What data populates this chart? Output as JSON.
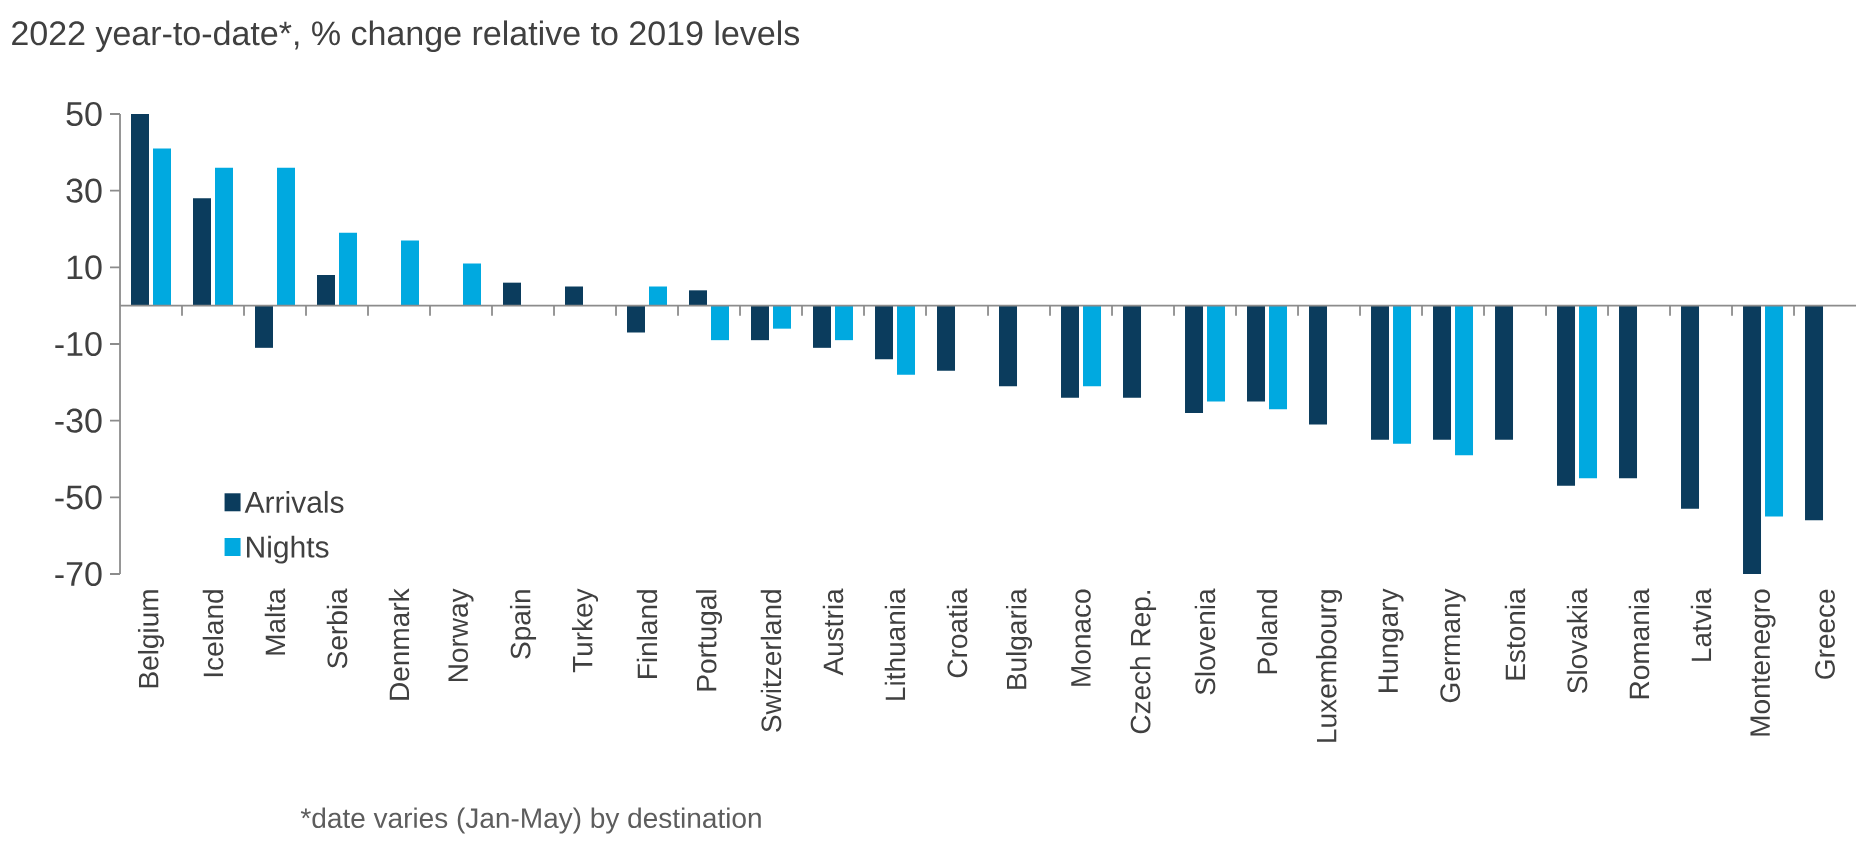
{
  "chart_data": {
    "type": "bar",
    "title": "2022 year-to-date*, % change relative to 2019 levels",
    "categories": [
      "Belgium",
      "Iceland",
      "Malta",
      "Serbia",
      "Denmark",
      "Norway",
      "Spain",
      "Turkey",
      "Finland",
      "Portugal",
      "Switzerland",
      "Austria",
      "Lithuania",
      "Croatia",
      "Bulgaria",
      "Monaco",
      "Czech Rep.",
      "Slovenia",
      "Poland",
      "Luxembourg",
      "Hungary",
      "Germany",
      "Estonia",
      "Slovakia",
      "Romania",
      "Latvia",
      "Montenegro",
      "Greece"
    ],
    "series": [
      {
        "name": "Arrivals",
        "color": "#0b3c5d",
        "values": [
          50,
          28,
          -11,
          8,
          null,
          null,
          6,
          5,
          -7,
          4,
          -9,
          -11,
          -14,
          -17,
          -21,
          -24,
          -24,
          -28,
          -25,
          -31,
          -35,
          -35,
          -35,
          -47,
          -45,
          -53,
          -70,
          -56
        ]
      },
      {
        "name": "Nights",
        "color": "#00a9e0",
        "values": [
          41,
          36,
          36,
          19,
          17,
          11,
          null,
          null,
          5,
          -9,
          -6,
          -9,
          -18,
          null,
          null,
          -21,
          null,
          -25,
          -27,
          null,
          -36,
          -39,
          null,
          -45,
          null,
          null,
          -55,
          null
        ]
      }
    ],
    "ylim": [
      -70,
      50
    ],
    "yticks": [
      -70,
      -50,
      -30,
      -10,
      10,
      30,
      50
    ],
    "legend": "bottom left",
    "annotations": [
      "*date varies (Jan-May) by destination"
    ]
  }
}
